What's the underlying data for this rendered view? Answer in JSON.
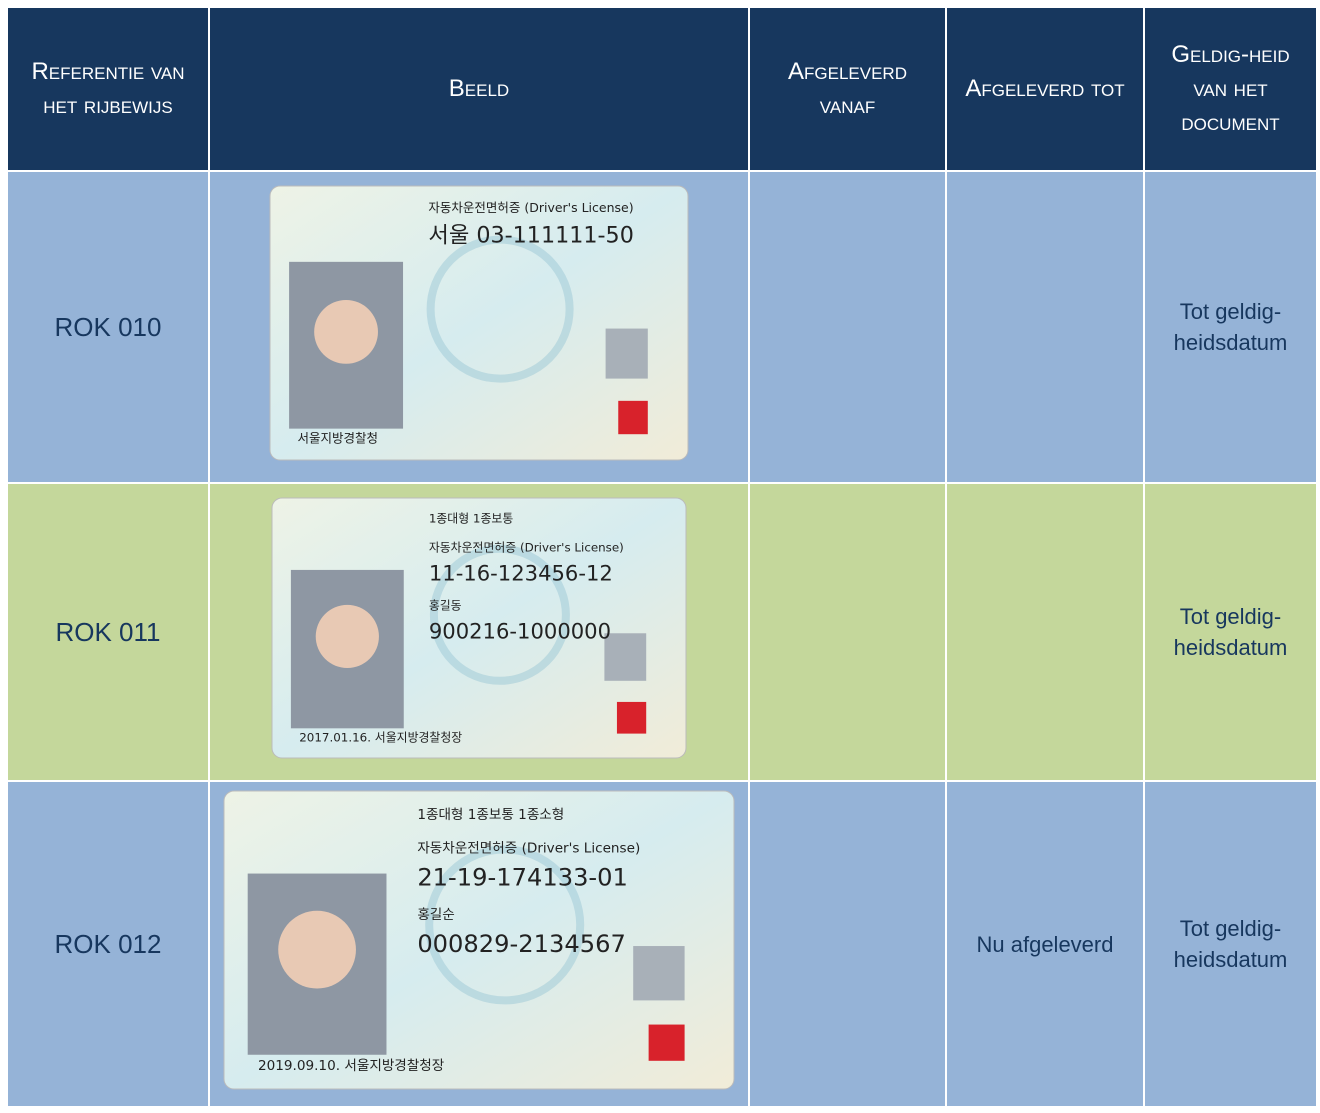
{
  "header": [
    "Referentie van het rijbewijs",
    "Beeld",
    "Afgeleverd vanaf",
    "Afgeleverd tot",
    "Geldig-heid van het document"
  ],
  "rows": [
    {
      "reference": "ROK 010",
      "image": {
        "lines": [
          "자동차운전면허증 (Driver's License)",
          "서울 03-111111-50",
          "서울지방경찰청"
        ]
      },
      "from": "",
      "to": "",
      "validity": "Tot geldig-heidsdatum"
    },
    {
      "reference": "ROK 011",
      "image": {
        "lines": [
          "1종대형 1종보통",
          "자동차운전면허증 (Driver's License)",
          "11-16-123456-12",
          "홍길동",
          "900216-1000000",
          "2017.01.16. 서울지방경찰청장"
        ]
      },
      "from": "",
      "to": "",
      "validity": "Tot geldig-heidsdatum"
    },
    {
      "reference": "ROK 012",
      "image": {
        "lines": [
          "1종대형 1종보통 1종소형",
          "자동차운전면허증 (Driver's License)",
          "21-19-174133-01",
          "홍길순",
          "000829-2134567",
          "2019.09.10. 서울지방경찰청장"
        ]
      },
      "from": "",
      "to": "Nu afgeleverd",
      "validity": "Tot geldig-heidsdatum"
    }
  ]
}
